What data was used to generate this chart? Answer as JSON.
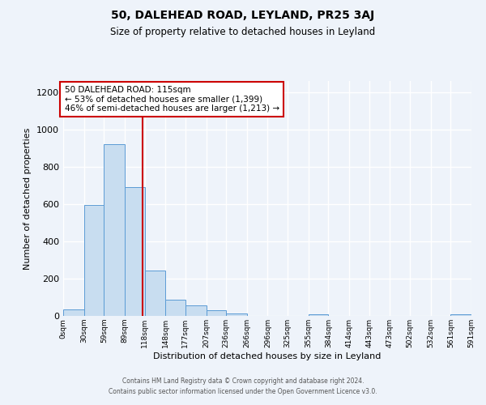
{
  "title": "50, DALEHEAD ROAD, LEYLAND, PR25 3AJ",
  "subtitle": "Size of property relative to detached houses in Leyland",
  "xlabel": "Distribution of detached houses by size in Leyland",
  "ylabel": "Number of detached properties",
  "bar_color": "#c8ddf0",
  "bar_edge_color": "#5b9bd5",
  "bin_edges": [
    0,
    30,
    59,
    89,
    118,
    148,
    177,
    207,
    236,
    266,
    296,
    325,
    355,
    384,
    414,
    443,
    473,
    502,
    532,
    561,
    591
  ],
  "bar_heights": [
    35,
    595,
    920,
    690,
    245,
    85,
    55,
    30,
    15,
    0,
    0,
    0,
    10,
    0,
    0,
    0,
    0,
    0,
    0,
    10
  ],
  "tick_labels": [
    "0sqm",
    "30sqm",
    "59sqm",
    "89sqm",
    "118sqm",
    "148sqm",
    "177sqm",
    "207sqm",
    "236sqm",
    "266sqm",
    "296sqm",
    "325sqm",
    "355sqm",
    "384sqm",
    "414sqm",
    "443sqm",
    "473sqm",
    "502sqm",
    "532sqm",
    "561sqm",
    "591sqm"
  ],
  "ylim": [
    0,
    1260
  ],
  "yticks": [
    0,
    200,
    400,
    600,
    800,
    1000,
    1200
  ],
  "vline_x": 115,
  "vline_color": "#cc0000",
  "annotation_title": "50 DALEHEAD ROAD: 115sqm",
  "annotation_line1": "← 53% of detached houses are smaller (1,399)",
  "annotation_line2": "46% of semi-detached houses are larger (1,213) →",
  "annotation_box_facecolor": "#ffffff",
  "annotation_box_edgecolor": "#cc0000",
  "background_color": "#eef3fa",
  "grid_color": "#ffffff",
  "footer_line1": "Contains HM Land Registry data © Crown copyright and database right 2024.",
  "footer_line2": "Contains public sector information licensed under the Open Government Licence v3.0."
}
